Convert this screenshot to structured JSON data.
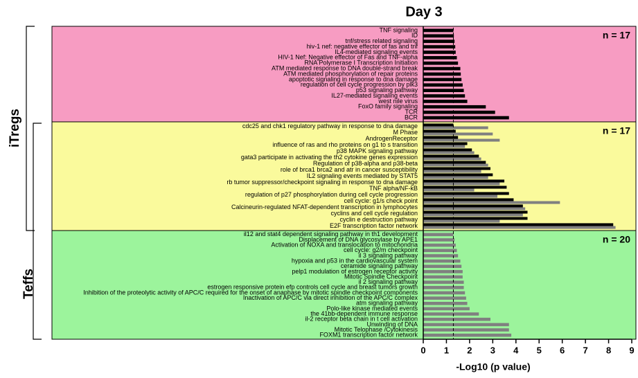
{
  "chart_data": {
    "type": "bar",
    "title": "Day 3",
    "xlabel": "-Log10 (p value)",
    "xlim": [
      0,
      9
    ],
    "xticks": [
      0,
      1,
      2,
      3,
      4,
      5,
      6,
      7,
      8,
      9
    ],
    "threshold": 1.3,
    "groups": [
      {
        "label": "iTregs"
      },
      {
        "label": "Teffs"
      }
    ],
    "panels": [
      {
        "n_label": "n = 17",
        "color": "#f79cc2",
        "categories": [
          "TNF signaling",
          "ID",
          "tnf/stress related signaling",
          "hiv-1 nef: negative effector of fas and tnf",
          "IL4-mediated signaling events",
          "HIV-1 Nef: Negative effector of Fas and TNF-alpha",
          "RNA Polymerase I Transcription Initiation",
          "ATM mediated response to DNA double-strand break",
          "ATM mediated phosphorylation of repair proteins",
          "apoptotic signaling in response to dna damage",
          "regulation of cell cycle progression by plk3",
          "p53 signaling pathway",
          "IL27-mediated signaling events",
          "west nile virus",
          "FoxO family signaling",
          "TCR",
          "BCR"
        ],
        "series": [
          {
            "color": "#000000",
            "values": [
              1.3,
              1.32,
              1.35,
              1.38,
              1.4,
              1.45,
              1.5,
              1.6,
              1.62,
              1.65,
              1.7,
              1.75,
              1.8,
              1.9,
              2.7,
              3.1,
              3.7
            ]
          }
        ]
      },
      {
        "n_label": "n = 17",
        "color": "#fafa9c",
        "categories": [
          "cdc25 and chk1 regulatory pathway in response to dna damage",
          "M Phase",
          "AndrogenReceptor",
          "influence of ras and rho proteins on g1 to s transition",
          "p38 MAPK signaling pathway",
          "gata3 participate in activating the th2 cytokine genes expression",
          "Regulation of p38-alpha and p38-beta",
          "role of brca1 brca2 and atr in cancer susceptibility",
          "IL2 signaling events mediated by STAT5",
          "rb tumor suppressor/checkpoint signaling in response to dna damage",
          "TNF alpha/NF-kB",
          "regulation of p27 phosphorylation during cell cycle progression",
          "cell cycle: g1/s check point",
          "Calcineurin-regulated NFAT-dependent transcription in lymphocytes",
          "cyclins and cell cycle regulation",
          "cyclin e destruction pathway",
          "E2F transcription factor network"
        ],
        "series": [
          {
            "color": "#808080",
            "values": [
              2.8,
              3.0,
              3.3,
              1.8,
              2.2,
              2.5,
              2.8,
              2.5,
              2.8,
              3.3,
              2.2,
              3.2,
              5.9,
              4.4,
              4.3,
              3.3,
              8.3
            ]
          },
          {
            "color": "#000000",
            "values": [
              1.3,
              1.4,
              1.5,
              1.9,
              2.1,
              2.4,
              2.7,
              2.9,
              3.0,
              3.5,
              3.6,
              3.7,
              3.9,
              4.3,
              4.5,
              4.5,
              8.2
            ]
          }
        ]
      },
      {
        "n_label": "n = 20",
        "color": "#9cf49c",
        "categories": [
          "il12 and stat4 dependent signaling pathway in th1 development",
          "Displacement of DNA glycosylase by  APE1",
          "Activation of NOXA and translocation to mitochondria",
          "cell cycle: g2/m checkpoint",
          "il 3 signaling pathway",
          "hypoxia and p53 in the cardiovascular system",
          "ceramide signaling pathway",
          "pelp1 modulation of estrogen receptor activity",
          "Mitotic Spindle Checkpoint",
          "il 2 signaling pathway",
          "estrogen responsive protein efp controls cell cycle and breast tumors growth",
          "Inhibition of the proteolytic activity of APC/C required for the onset of anaphase by mitotic spindle checkpoint components",
          "Inactivation of APC/C via direct inhibition of the APC/C complex",
          "atm signaling pathway",
          "Polo-like kinase mediated events",
          "the 41bb-dependent immune response",
          "il-2 receptor beta chain in t cell activation",
          "Unwinding of DNA",
          "Mitotic Telophase /Cytokinesis",
          "FOXM1 transcription factor network"
        ],
        "series": [
          {
            "color": "#808080",
            "values": [
              1.3,
              1.35,
              1.4,
              1.45,
              1.5,
              1.6,
              1.65,
              1.7,
              1.7,
              1.75,
              1.75,
              1.8,
              1.85,
              1.9,
              2.0,
              2.4,
              2.9,
              3.7,
              3.7,
              3.8
            ]
          }
        ]
      }
    ]
  }
}
